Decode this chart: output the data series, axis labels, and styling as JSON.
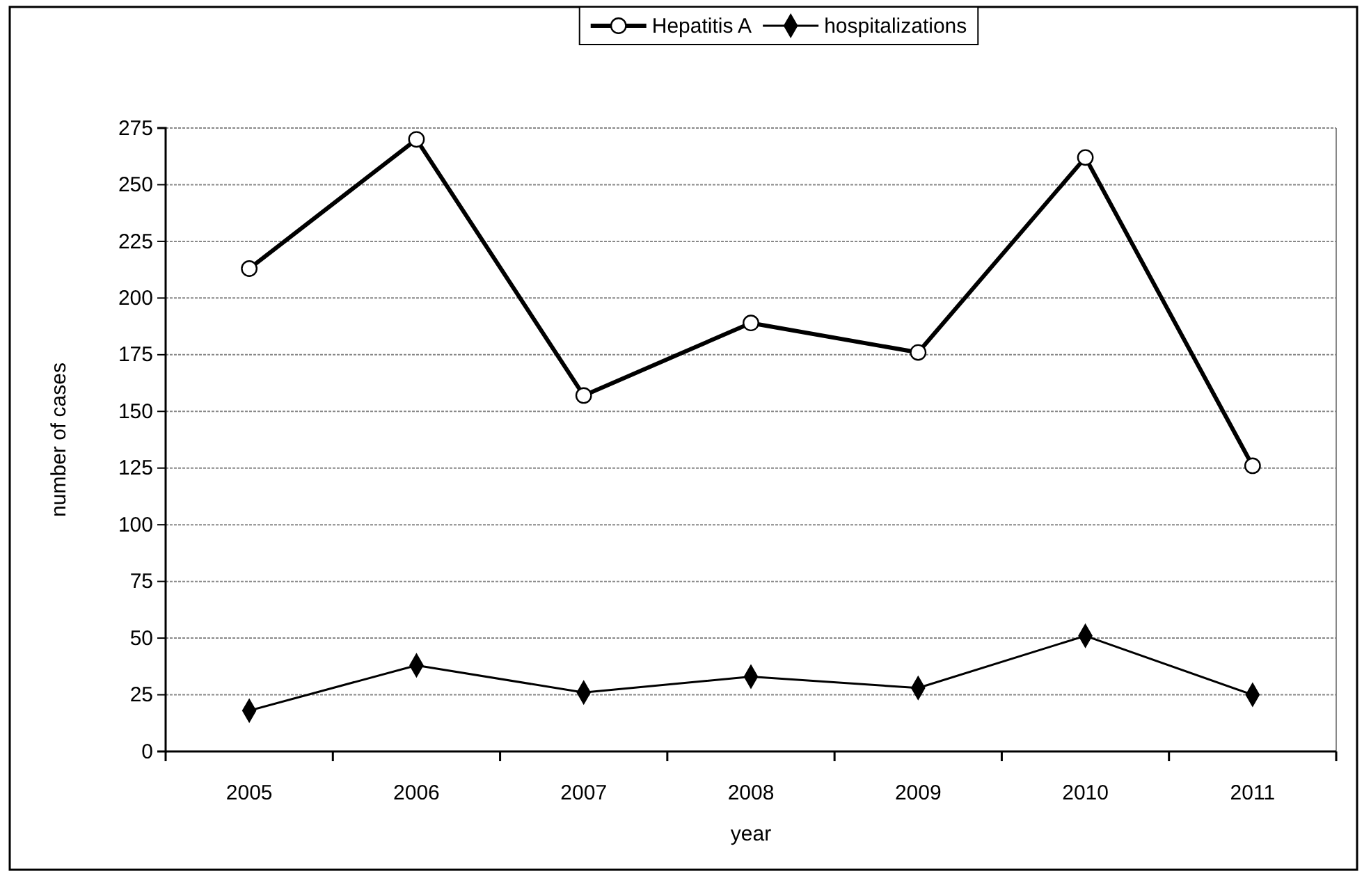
{
  "chart_data": {
    "type": "line",
    "xlabel": "year",
    "ylabel": "number of cases",
    "categories": [
      "2005",
      "2006",
      "2007",
      "2008",
      "2009",
      "2010",
      "2011"
    ],
    "series": [
      {
        "name": "Hepatitis A",
        "color": "#000000",
        "marker": "circle",
        "values": [
          213,
          270,
          157,
          189,
          176,
          262,
          126
        ]
      },
      {
        "name": "hospitalizations",
        "color": "#000000",
        "marker": "diamond",
        "values": [
          18,
          38,
          26,
          33,
          28,
          51,
          25
        ]
      }
    ],
    "ylim": [
      0,
      275
    ],
    "yticks": [
      0,
      25,
      50,
      75,
      100,
      125,
      150,
      175,
      200,
      225,
      250,
      275
    ],
    "grid": "y",
    "legend": "top",
    "line_style": "solid"
  }
}
